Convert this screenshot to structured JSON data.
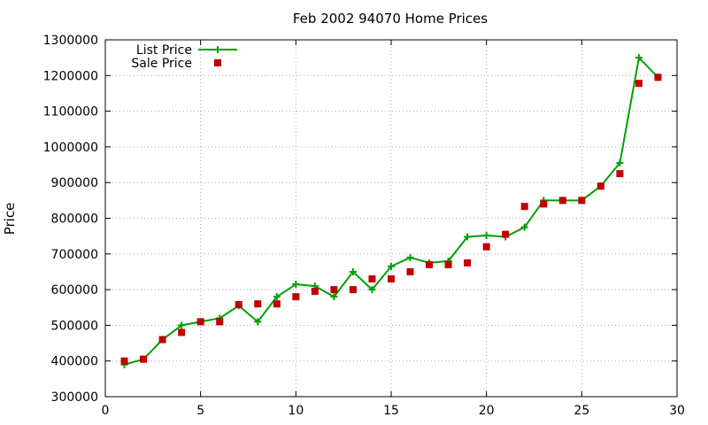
{
  "chart_data": {
    "type": "line",
    "title": "Feb 2002 94070 Home Prices",
    "xlabel": "",
    "ylabel": "Price",
    "xlim": [
      0,
      30
    ],
    "ylim": [
      300000,
      1300000
    ],
    "xticks": [
      0,
      5,
      10,
      15,
      20,
      25,
      30
    ],
    "yticks": [
      300000,
      400000,
      500000,
      600000,
      700000,
      800000,
      900000,
      1000000,
      1100000,
      1200000,
      1300000
    ],
    "grid": true,
    "legend_position": "top-left",
    "series": [
      {
        "name": "List Price",
        "style": "line+cross",
        "color": "#00a000",
        "x": [
          1,
          2,
          3,
          4,
          5,
          6,
          7,
          8,
          9,
          10,
          11,
          12,
          13,
          14,
          15,
          16,
          17,
          18,
          19,
          20,
          21,
          22,
          23,
          24,
          25,
          26,
          27,
          28,
          29
        ],
        "y": [
          390000,
          405000,
          460000,
          500000,
          510000,
          520000,
          555000,
          510000,
          580000,
          615000,
          610000,
          580000,
          650000,
          600000,
          665000,
          690000,
          675000,
          680000,
          748000,
          752000,
          748000,
          775000,
          850000,
          850000,
          850000,
          890000,
          955000,
          1250000,
          1195000
        ]
      },
      {
        "name": "Sale Price",
        "style": "square",
        "color": "#c00000",
        "x": [
          1,
          2,
          3,
          4,
          5,
          6,
          7,
          8,
          9,
          10,
          11,
          12,
          13,
          14,
          15,
          16,
          17,
          18,
          19,
          20,
          21,
          22,
          23,
          24,
          25,
          26,
          27,
          28,
          29
        ],
        "y": [
          400000,
          405000,
          460000,
          480000,
          510000,
          510000,
          558000,
          560000,
          560000,
          580000,
          595000,
          600000,
          600000,
          630000,
          630000,
          650000,
          670000,
          670000,
          675000,
          720000,
          755000,
          833000,
          840000,
          850000,
          850000,
          890000,
          925000,
          1178000,
          1195000
        ]
      }
    ]
  }
}
